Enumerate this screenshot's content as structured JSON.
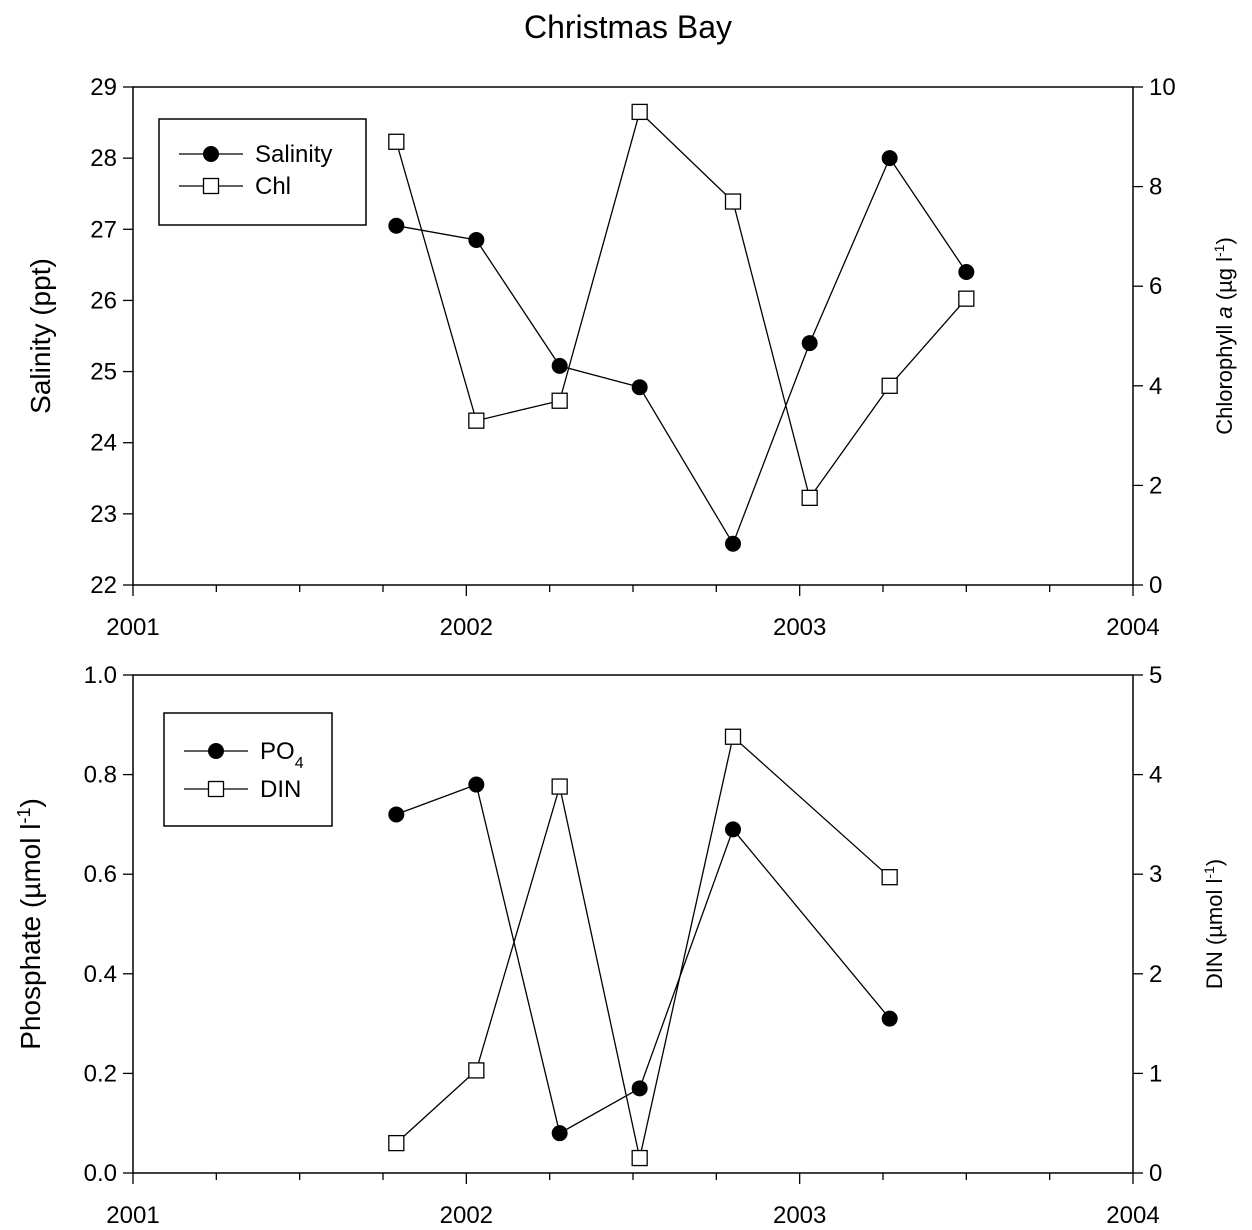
{
  "figure": {
    "title": "Christmas Bay"
  },
  "chart_data": [
    {
      "type": "line",
      "id": "top",
      "xlim": [
        2001,
        2004
      ],
      "xticks": [
        2001,
        2002,
        2003,
        2004
      ],
      "xtick_labels": [
        "2001",
        "2002",
        "2003",
        "2004"
      ],
      "x_minor_step": 0.25,
      "left_axis": {
        "label": "Salinity (ppt)",
        "label_parts": [
          {
            "text": "Salinity (ppt)"
          }
        ],
        "ylim": [
          22,
          29
        ],
        "ticks": [
          22,
          23,
          24,
          25,
          26,
          27,
          28,
          29
        ],
        "tick_labels": [
          "22",
          "23",
          "24",
          "25",
          "26",
          "27",
          "28",
          "29"
        ]
      },
      "right_axis": {
        "label": "Chlorophyll a (µg l⁻¹)",
        "label_parts": [
          {
            "text": "Chlorophyll "
          },
          {
            "text": "a",
            "style": "italic"
          },
          {
            "text": " (µg l"
          },
          {
            "text": "-1",
            "style": "sup"
          },
          {
            "text": ")"
          }
        ],
        "ylim": [
          0,
          10
        ],
        "ticks": [
          0,
          2,
          4,
          6,
          8,
          10
        ],
        "tick_labels": [
          "0",
          "2",
          "4",
          "6",
          "8",
          "10"
        ]
      },
      "legend": {
        "position": "top-left"
      },
      "series": [
        {
          "name": "Salinity",
          "name_parts": [
            {
              "text": "Salinity"
            }
          ],
          "axis": "left",
          "marker": "filled-circle",
          "x": [
            2001.79,
            2002.03,
            2002.28,
            2002.52,
            2002.8,
            2003.03,
            2003.27,
            2003.5
          ],
          "values": [
            27.05,
            26.85,
            25.08,
            24.78,
            22.58,
            25.4,
            28.0,
            26.4
          ]
        },
        {
          "name": "Chl",
          "name_parts": [
            {
              "text": "Chl"
            }
          ],
          "axis": "right",
          "marker": "open-square",
          "x": [
            2001.79,
            2002.03,
            2002.28,
            2002.52,
            2002.8,
            2003.03,
            2003.27,
            2003.5
          ],
          "values": [
            8.9,
            3.3,
            3.7,
            9.5,
            7.7,
            1.75,
            4.0,
            5.75
          ]
        }
      ]
    },
    {
      "type": "line",
      "id": "bottom",
      "xlim": [
        2001,
        2004
      ],
      "xticks": [
        2001,
        2002,
        2003,
        2004
      ],
      "xtick_labels": [
        "2001",
        "2002",
        "2003",
        "2004"
      ],
      "x_minor_step": 0.25,
      "left_axis": {
        "label": "Phosphate (µmol l⁻¹)",
        "label_parts": [
          {
            "text": "Phosphate (µmol l"
          },
          {
            "text": "-1",
            "style": "sup"
          },
          {
            "text": ")"
          }
        ],
        "ylim": [
          0,
          1
        ],
        "ticks": [
          0,
          0.2,
          0.4,
          0.6,
          0.8,
          1.0
        ],
        "tick_labels": [
          "0.0",
          "0.2",
          "0.4",
          "0.6",
          "0.8",
          "1.0"
        ]
      },
      "right_axis": {
        "label": "DIN (µmol l⁻¹)",
        "label_parts": [
          {
            "text": "DIN (µmol l"
          },
          {
            "text": "-1",
            "style": "sup"
          },
          {
            "text": ")"
          }
        ],
        "ylim": [
          0,
          5
        ],
        "ticks": [
          0,
          1,
          2,
          3,
          4,
          5
        ],
        "tick_labels": [
          "0",
          "1",
          "2",
          "3",
          "4",
          "5"
        ]
      },
      "legend": {
        "position": "top-left"
      },
      "series": [
        {
          "name": "PO4",
          "name_parts": [
            {
              "text": "PO"
            },
            {
              "text": "4",
              "style": "sub"
            }
          ],
          "axis": "left",
          "marker": "filled-circle",
          "x": [
            2001.79,
            2002.03,
            2002.28,
            2002.52,
            2002.8,
            2003.27
          ],
          "values": [
            0.72,
            0.78,
            0.08,
            0.17,
            0.69,
            0.31
          ]
        },
        {
          "name": "DIN",
          "name_parts": [
            {
              "text": "DIN"
            }
          ],
          "axis": "right",
          "marker": "open-square",
          "x": [
            2001.79,
            2002.03,
            2002.28,
            2002.52,
            2002.8,
            2003.27
          ],
          "values": [
            0.3,
            1.03,
            3.88,
            0.15,
            4.38,
            2.97
          ]
        }
      ]
    }
  ]
}
